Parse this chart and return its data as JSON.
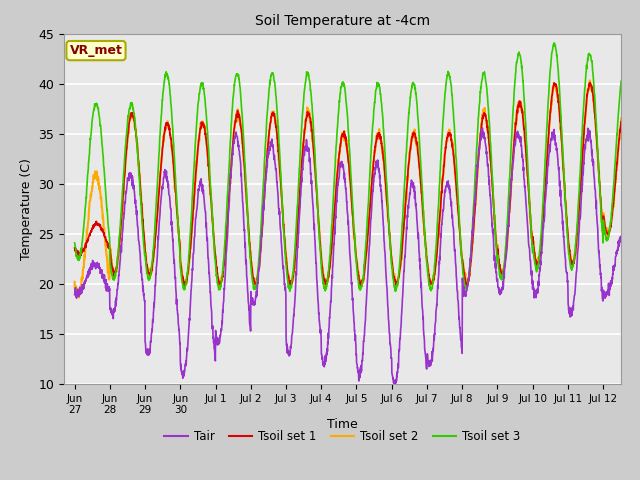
{
  "title": "Soil Temperature at -4cm",
  "xlabel": "Time",
  "ylabel": "Temperature (C)",
  "ylim": [
    10,
    45
  ],
  "annotation_text": "VR_met",
  "annotation_facecolor": "#ffffcc",
  "annotation_edgecolor": "#aaaa00",
  "annotation_textcolor": "#880000",
  "colors": {
    "Tair": "#9933cc",
    "Tsoil1": "#dd0000",
    "Tsoil2": "#ffaa00",
    "Tsoil3": "#33cc00"
  },
  "legend_labels": [
    "Tair",
    "Tsoil set 1",
    "Tsoil set 2",
    "Tsoil set 3"
  ],
  "xtick_labels": [
    "Jun\n27",
    "Jun\n28",
    "Jun\n29",
    "Jun\n30",
    "Jul 1",
    "Jul 2",
    "Jul 3",
    "Jul 4",
    "Jul 5",
    "Jul 6",
    "Jul 7",
    "Jul 8",
    "Jul 9",
    "Jul 10",
    "Jul 11",
    "Jul 12"
  ],
  "xtick_positions": [
    0,
    1,
    2,
    3,
    4,
    5,
    6,
    7,
    8,
    9,
    10,
    11,
    12,
    13,
    14,
    15
  ],
  "ytick_positions": [
    10,
    15,
    20,
    25,
    30,
    35,
    40,
    45
  ],
  "plot_bg_color": "#e8e8e8",
  "fig_bg_color": "#cccccc"
}
